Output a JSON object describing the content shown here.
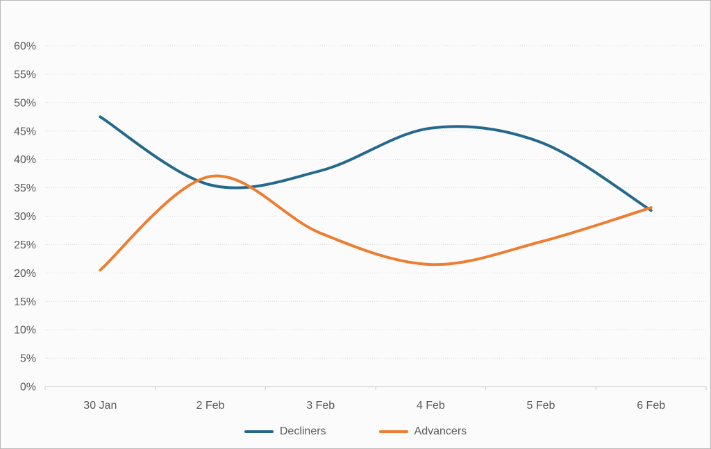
{
  "chart_style": {
    "background": "#FBFBFB",
    "frame_border_color": "#B9B9B9",
    "text_color": "#595959",
    "gridline_color": "#D8D8D8",
    "axis_line_color": "#C9C9C9",
    "line_width": 4
  },
  "chart_data": {
    "type": "line",
    "smooth": true,
    "title": "",
    "xlabel": "",
    "ylabel": "",
    "categories": [
      "30 Jan",
      "2 Feb",
      "3 Feb",
      "4 Feb",
      "5 Feb",
      "6 Feb"
    ],
    "series": [
      {
        "name": "Decliners",
        "color": "#24698C",
        "values": [
          47.5,
          35.5,
          38,
          45.5,
          43,
          31
        ]
      },
      {
        "name": "Advancers",
        "color": "#ED7D31",
        "values": [
          20.5,
          37,
          27,
          21.5,
          25.5,
          31.5
        ]
      }
    ],
    "ylim": [
      0,
      60
    ],
    "y_step": 5,
    "y_tick_labels": [
      "0%",
      "5%",
      "10%",
      "15%",
      "20%",
      "25%",
      "30%",
      "35%",
      "40%",
      "45%",
      "50%",
      "55%",
      "60%"
    ],
    "y_tick_suffix": "%",
    "grid": "horizontal-dotted",
    "legend_position": "bottom"
  }
}
